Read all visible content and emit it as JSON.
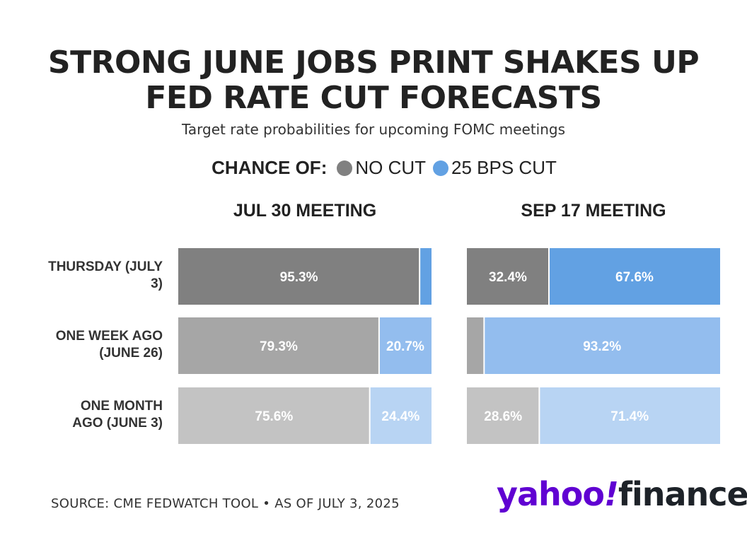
{
  "title_line1": "STRONG JUNE JOBS PRINT SHAKES UP",
  "title_line2": "FED RATE CUT FORECASTS",
  "subtitle": "Target rate probabilities for upcoming FOMC meetings",
  "legend": {
    "title": "CHANCE OF:",
    "items": [
      {
        "label": "NO CUT",
        "color": "#808080"
      },
      {
        "label": "25 BPS CUT",
        "color": "#62a1e3"
      }
    ]
  },
  "colors": {
    "no_cut": [
      "#808080",
      "#a6a6a6",
      "#c3c3c3"
    ],
    "cut": [
      "#62a1e3",
      "#93bdee",
      "#b8d4f3"
    ]
  },
  "chart_data": [
    {
      "type": "bar",
      "orientation": "horizontal-stacked",
      "title": "JUL 30 MEETING",
      "categories": [
        "THURSDAY (JULY 3)",
        "ONE WEEK AGO (JUNE 26)",
        "ONE MONTH AGO (JUNE 3)"
      ],
      "series": [
        {
          "name": "NO CUT",
          "values": [
            95.3,
            79.3,
            75.6
          ]
        },
        {
          "name": "25 BPS CUT",
          "values": [
            4.7,
            20.7,
            24.4
          ]
        }
      ],
      "labels": [
        [
          "95.3%",
          ""
        ],
        [
          "79.3%",
          "20.7%"
        ],
        [
          "75.6%",
          "24.4%"
        ]
      ],
      "xlim": [
        0,
        100
      ]
    },
    {
      "type": "bar",
      "orientation": "horizontal-stacked",
      "title": "SEP 17 MEETING",
      "categories": [
        "THURSDAY (JULY 3)",
        "ONE WEEK AGO (JUNE 26)",
        "ONE MONTH AGO (JUNE 3)"
      ],
      "series": [
        {
          "name": "NO CUT",
          "values": [
            32.4,
            6.8,
            28.6
          ]
        },
        {
          "name": "25 BPS CUT",
          "values": [
            67.6,
            93.2,
            71.4
          ]
        }
      ],
      "labels": [
        [
          "32.4%",
          "67.6%"
        ],
        [
          "",
          "93.2%"
        ],
        [
          "28.6%",
          "71.4%"
        ]
      ],
      "xlim": [
        0,
        100
      ]
    }
  ],
  "row_labels": [
    [
      "THURSDAY (JULY",
      "3)"
    ],
    [
      "ONE WEEK AGO",
      "(JUNE 26)"
    ],
    [
      "ONE MONTH",
      "AGO (JUNE 3)"
    ]
  ],
  "source": "SOURCE: CME FEDWATCH TOOL • AS OF JULY 3, 2025",
  "logo": {
    "yahoo": "yahoo",
    "bang": "!",
    "finance": "finance"
  }
}
